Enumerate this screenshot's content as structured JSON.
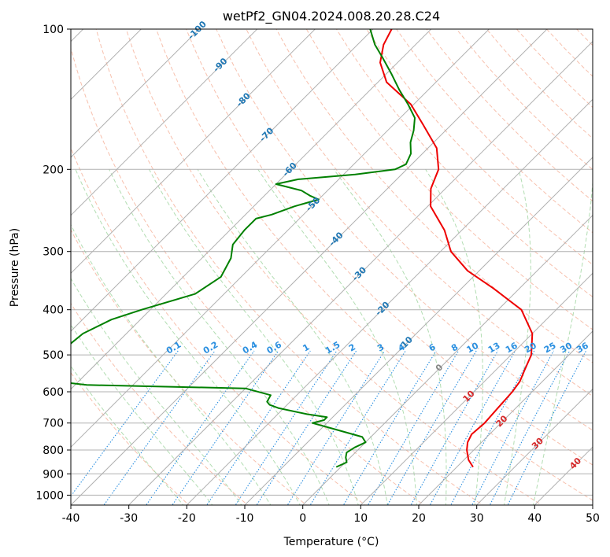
{
  "chart_data": {
    "type": "line",
    "title": "wetPf2_GN04.2024.008.20.28.C24",
    "xlabel": "Temperature (°C)",
    "ylabel": "Pressure (hPa)",
    "xlim": [
      -40,
      50
    ],
    "ylim": [
      1050,
      100
    ],
    "y_scale": "log",
    "skew_degrees": 45,
    "grid": true,
    "x_ticks": [
      -40,
      -30,
      -20,
      -10,
      0,
      10,
      20,
      30,
      40,
      50
    ],
    "y_ticks": [
      100,
      200,
      300,
      400,
      500,
      600,
      700,
      800,
      900,
      1000
    ],
    "series": [
      {
        "color": "#ee0000",
        "points": [
          {
            "p": 870,
            "t": 22.8
          },
          {
            "p": 840,
            "t": 20.8
          },
          {
            "p": 800,
            "t": 18.8
          },
          {
            "p": 770,
            "t": 17.6
          },
          {
            "p": 740,
            "t": 16.9
          },
          {
            "p": 700,
            "t": 17.2
          },
          {
            "p": 650,
            "t": 16.9
          },
          {
            "p": 600,
            "t": 16.6
          },
          {
            "p": 570,
            "t": 16.1
          },
          {
            "p": 540,
            "t": 15.0
          },
          {
            "p": 500,
            "t": 13.5
          },
          {
            "p": 450,
            "t": 10.0
          },
          {
            "p": 400,
            "t": 4.0
          },
          {
            "p": 360,
            "t": -4.5
          },
          {
            "p": 330,
            "t": -12.0
          },
          {
            "p": 300,
            "t": -18.2
          },
          {
            "p": 270,
            "t": -23.0
          },
          {
            "p": 240,
            "t": -29.5
          },
          {
            "p": 220,
            "t": -32.5
          },
          {
            "p": 200,
            "t": -34.5
          },
          {
            "p": 180,
            "t": -38.5
          },
          {
            "p": 160,
            "t": -45.0
          },
          {
            "p": 145,
            "t": -50.5
          },
          {
            "p": 130,
            "t": -58.5
          },
          {
            "p": 118,
            "t": -63.0
          },
          {
            "p": 108,
            "t": -65.5
          },
          {
            "p": 100,
            "t": -66.8
          }
        ]
      },
      {
        "color": "#008000",
        "points": [
          {
            "p": 870,
            "t": -0.8
          },
          {
            "p": 850,
            "t": 0.2
          },
          {
            "p": 830,
            "t": -0.8
          },
          {
            "p": 810,
            "t": -1.5
          },
          {
            "p": 790,
            "t": -1.0
          },
          {
            "p": 770,
            "t": 0.0
          },
          {
            "p": 750,
            "t": -1.5
          },
          {
            "p": 720,
            "t": -8.0
          },
          {
            "p": 700,
            "t": -12.5
          },
          {
            "p": 690,
            "t": -11.0
          },
          {
            "p": 680,
            "t": -11.0
          },
          {
            "p": 670,
            "t": -15.0
          },
          {
            "p": 650,
            "t": -21.0
          },
          {
            "p": 640,
            "t": -23.0
          },
          {
            "p": 630,
            "t": -24.0
          },
          {
            "p": 610,
            "t": -24.5
          },
          {
            "p": 590,
            "t": -30.0
          },
          {
            "p": 580,
            "t": -58.0
          },
          {
            "p": 570,
            "t": -64.0
          },
          {
            "p": 480,
            "t": -68.0
          },
          {
            "p": 450,
            "t": -67.5
          },
          {
            "p": 420,
            "t": -65.0
          },
          {
            "p": 400,
            "t": -61.5
          },
          {
            "p": 370,
            "t": -55.0
          },
          {
            "p": 340,
            "t": -53.5
          },
          {
            "p": 310,
            "t": -55.0
          },
          {
            "p": 290,
            "t": -57.0
          },
          {
            "p": 270,
            "t": -57.5
          },
          {
            "p": 255,
            "t": -57.5
          },
          {
            "p": 250,
            "t": -55.5
          },
          {
            "p": 240,
            "t": -53.0
          },
          {
            "p": 232,
            "t": -50.0
          },
          {
            "p": 228,
            "t": -52.0
          },
          {
            "p": 222,
            "t": -54.5
          },
          {
            "p": 215,
            "t": -60.0
          },
          {
            "p": 210,
            "t": -57.0
          },
          {
            "p": 205,
            "t": -48.0
          },
          {
            "p": 200,
            "t": -42.0
          },
          {
            "p": 195,
            "t": -41.0
          },
          {
            "p": 185,
            "t": -42.0
          },
          {
            "p": 175,
            "t": -44.0
          },
          {
            "p": 165,
            "t": -45.5
          },
          {
            "p": 155,
            "t": -47.5
          },
          {
            "p": 145,
            "t": -51.0
          },
          {
            "p": 135,
            "t": -55.0
          },
          {
            "p": 125,
            "t": -59.0
          },
          {
            "p": 115,
            "t": -63.5
          },
          {
            "p": 108,
            "t": -67.0
          },
          {
            "p": 100,
            "t": -70.5
          }
        ]
      }
    ],
    "isotherm_labels": [
      -100,
      -90,
      -80,
      -70,
      -60,
      -50,
      -40,
      -30,
      -20,
      -10,
      0,
      10,
      20,
      30,
      40
    ],
    "mixing_ratio_labels": [
      "0.1",
      "0.2",
      "0.4",
      "0.6",
      "1",
      "1.5",
      "2",
      "3",
      "4",
      "6",
      "8",
      "10",
      "13",
      "16",
      "20",
      "25",
      "30",
      "36"
    ],
    "mixing_ratio_values": [
      0.1,
      0.2,
      0.4,
      0.6,
      1,
      1.5,
      2,
      3,
      4,
      6,
      8,
      10,
      13,
      16,
      20,
      25,
      30,
      36
    ],
    "colors": {
      "temperature": "#ee0000",
      "dewpoint": "#008000",
      "isotherm_grid": "#b0b0b0",
      "dry_adiabat": "#f4a58a",
      "moist_adiabat": "#9fd49f",
      "mixing_ratio": "#2a8fe0",
      "isotherm_label_cold": "#1f77b4",
      "isotherm_label_zero": "#888888",
      "isotherm_label_warm": "#d62728"
    }
  }
}
